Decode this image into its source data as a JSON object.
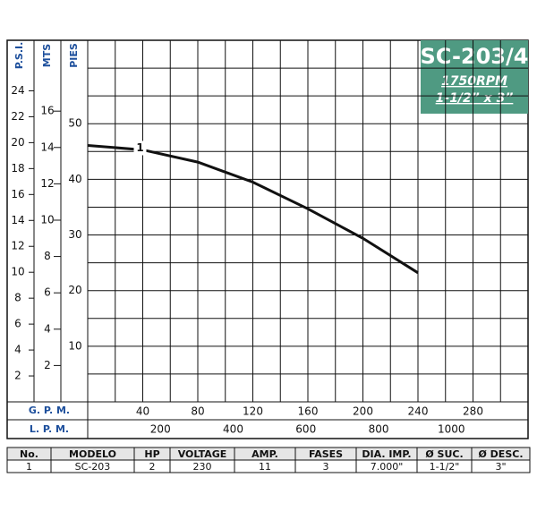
{
  "chart_data": {
    "type": "line",
    "title": "SC-203/4",
    "subtitle": "1750RPM",
    "size_label": "1-1/2” x 3”",
    "x": [
      0,
      40,
      80,
      120,
      160,
      200,
      240
    ],
    "series": [
      {
        "name": "1",
        "color": "#111111",
        "values": [
          46.1,
          45.3,
          43.1,
          39.5,
          34.7,
          29.4,
          23.2
        ]
      }
    ],
    "xlabel": "G. P. M.",
    "xlim": [
      0,
      320
    ],
    "xticks": [
      40,
      80,
      120,
      160,
      200,
      240,
      280
    ],
    "ylabel": "PIES",
    "ylim": [
      0,
      65
    ],
    "yticks": [
      10,
      20,
      30,
      40,
      50
    ],
    "psi_axis": {
      "label": "P.S.I.",
      "lim": [
        0,
        27.9
      ],
      "ticks": [
        2,
        4,
        6,
        8,
        10,
        12,
        14,
        16,
        18,
        20,
        22,
        24
      ]
    },
    "mts_axis": {
      "label": "MTS",
      "lim": [
        0,
        19.9
      ],
      "ticks": [
        2,
        4,
        6,
        8,
        10,
        12,
        14,
        16
      ]
    },
    "lpm_axis": {
      "label": "L. P. M.",
      "lim": [
        0,
        1211
      ],
      "ticks": [
        200,
        400,
        600,
        800,
        1000
      ]
    },
    "grid": true,
    "header_color": "#4f9a82",
    "axis_label_color": "#1d4f9c"
  },
  "table": {
    "headers": [
      "No.",
      "MODELO",
      "HP",
      "VOLTAGE",
      "AMP.",
      "FASES",
      "DIA. IMP.",
      "Ø SUC.",
      "Ø DESC."
    ],
    "rows": [
      [
        "1",
        "SC-203",
        "2",
        "230",
        "11",
        "3",
        "7.000\"",
        "1-1/2\"",
        "3\""
      ]
    ]
  }
}
